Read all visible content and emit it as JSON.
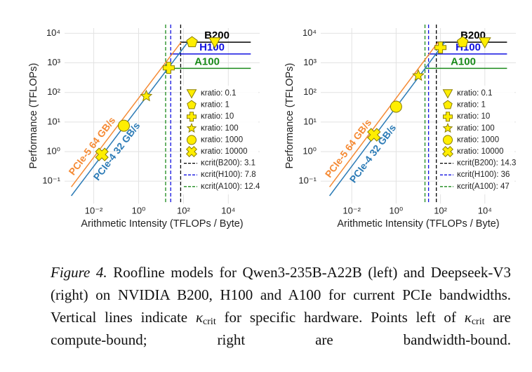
{
  "chart_data": [
    {
      "type": "line",
      "ylabel": "Performance (TFLOPs)",
      "xlabel": "Arithmetic Intensity (TFLOPs / Byte)",
      "xscale": "log",
      "yscale": "log",
      "grid": true,
      "xlim": [
        0.0005,
        250000
      ],
      "ylim": [
        0.0175,
        15000
      ],
      "xticks": [
        {
          "value": 0.01,
          "label": "10⁻²"
        },
        {
          "value": 1,
          "label": "10⁰"
        },
        {
          "value": 100,
          "label": "10²"
        },
        {
          "value": 10000,
          "label": "10⁴"
        }
      ],
      "yticks": [
        {
          "value": 0.1,
          "label": "10⁻¹"
        },
        {
          "value": 1,
          "label": "10⁰"
        },
        {
          "value": 10,
          "label": "10¹"
        },
        {
          "value": 100,
          "label": "10²"
        },
        {
          "value": 1000,
          "label": "10³"
        },
        {
          "value": 10000,
          "label": "10⁴"
        }
      ],
      "series": [
        {
          "name": "PCIe-5 64 GB/s",
          "color": "#f58a34",
          "x": [
            0.001,
            78
          ],
          "values": [
            0.064,
            5000
          ]
        },
        {
          "name": "PCIe-4 32 GB/s",
          "color": "#2c7bb6",
          "x": [
            0.001,
            156
          ],
          "values": [
            0.032,
            5000
          ]
        }
      ],
      "hardware": [
        {
          "name": "B200",
          "color": "#000000",
          "x": [
            75,
            100000
          ],
          "values": [
            5000,
            5000
          ],
          "legend": "κcrit(B200): 3.1"
        },
        {
          "name": "H100",
          "color": "#1010e0",
          "x": [
            27,
            100000
          ],
          "values": [
            2000,
            2000
          ],
          "legend": "κcrit(H100): 7.8"
        },
        {
          "name": "A100",
          "color": "#1a8a1a",
          "x": [
            16,
            100000
          ],
          "values": [
            650,
            650
          ],
          "legend": "κcrit(A100): 12.4"
        }
      ],
      "marker_color": "#ffee00",
      "points": [
        {
          "name": "κratio: 0.1",
          "marker": "triangle",
          "x": [
            2500
          ],
          "values": [
            5000
          ]
        },
        {
          "name": "κratio: 1",
          "marker": "pentagon",
          "x": [
            240
          ],
          "values": [
            5000
          ]
        },
        {
          "name": "κratio: 10",
          "marker": "plus",
          "x": [
            22
          ],
          "values": [
            680
          ]
        },
        {
          "name": "κratio: 100",
          "marker": "star",
          "x": [
            2.2
          ],
          "values": [
            75
          ]
        },
        {
          "name": "κratio: 1000",
          "marker": "circle",
          "x": [
            0.22
          ],
          "values": [
            7.5
          ]
        },
        {
          "name": "κratio: 10000",
          "marker": "x",
          "x": [
            0.023
          ],
          "values": [
            0.8
          ]
        }
      ]
    },
    {
      "type": "line",
      "ylabel": "Performance (TFLOPs)",
      "xlabel": "Arithmetic Intensity (TFLOPs / Byte)",
      "xscale": "log",
      "yscale": "log",
      "grid": true,
      "xlim": [
        0.0004,
        250000
      ],
      "ylim": [
        0.0175,
        15000
      ],
      "xticks": [
        {
          "value": 0.01,
          "label": "10⁻²"
        },
        {
          "value": 1,
          "label": "10⁰"
        },
        {
          "value": 100,
          "label": "10²"
        },
        {
          "value": 10000,
          "label": "10⁴"
        }
      ],
      "yticks": [
        {
          "value": 0.1,
          "label": "10⁻¹"
        },
        {
          "value": 1,
          "label": "10⁰"
        },
        {
          "value": 10,
          "label": "10¹"
        },
        {
          "value": 100,
          "label": "10²"
        },
        {
          "value": 1000,
          "label": "10³"
        },
        {
          "value": 10000,
          "label": "10⁴"
        }
      ],
      "series": [
        {
          "name": "PCIe-5 64 GB/s",
          "color": "#f58a34",
          "x": [
            0.001,
            78
          ],
          "values": [
            0.064,
            5000
          ]
        },
        {
          "name": "PCIe-4 32 GB/s",
          "color": "#2c7bb6",
          "x": [
            0.001,
            156
          ],
          "values": [
            0.032,
            5000
          ]
        }
      ],
      "hardware": [
        {
          "name": "B200",
          "color": "#000000",
          "x": [
            65,
            100000
          ],
          "values": [
            5000,
            5000
          ],
          "legend": "κcrit(B200): 14.3"
        },
        {
          "name": "H100",
          "color": "#1010e0",
          "x": [
            29,
            100000
          ],
          "values": [
            2000,
            2000
          ],
          "legend": "κcrit(H100): 36"
        },
        {
          "name": "A100",
          "color": "#1a8a1a",
          "x": [
            20,
            100000
          ],
          "values": [
            650,
            650
          ],
          "legend": "κcrit(A100): 47"
        }
      ],
      "marker_color": "#ffee00",
      "points": [
        {
          "name": "κratio: 0.1",
          "marker": "triangle",
          "x": [
            10000
          ],
          "values": [
            5000
          ]
        },
        {
          "name": "κratio: 1",
          "marker": "pentagon",
          "x": [
            1000
          ],
          "values": [
            5000
          ]
        },
        {
          "name": "κratio: 10",
          "marker": "plus",
          "x": [
            100
          ],
          "values": [
            3300
          ]
        },
        {
          "name": "κratio: 100",
          "marker": "star",
          "x": [
            10
          ],
          "values": [
            370
          ]
        },
        {
          "name": "κratio: 1000",
          "marker": "circle",
          "x": [
            1
          ],
          "values": [
            33
          ]
        },
        {
          "name": "κratio: 10000",
          "marker": "x",
          "x": [
            0.1
          ],
          "values": [
            3.7
          ]
        }
      ]
    }
  ],
  "caption": {
    "label": "Figure 4.",
    "parts": [
      "Roofline models for Qwen3-235B-A22B (left) and Deepseek-V3 (right) on NVIDIA B200, H100 and A100 for current PCIe bandwidths. Vertical lines indicate ",
      "κ",
      "crit",
      " for specific hardware. Points left of ",
      "κ",
      "crit",
      " are compute-bound; right are bandwidth-bound."
    ]
  }
}
